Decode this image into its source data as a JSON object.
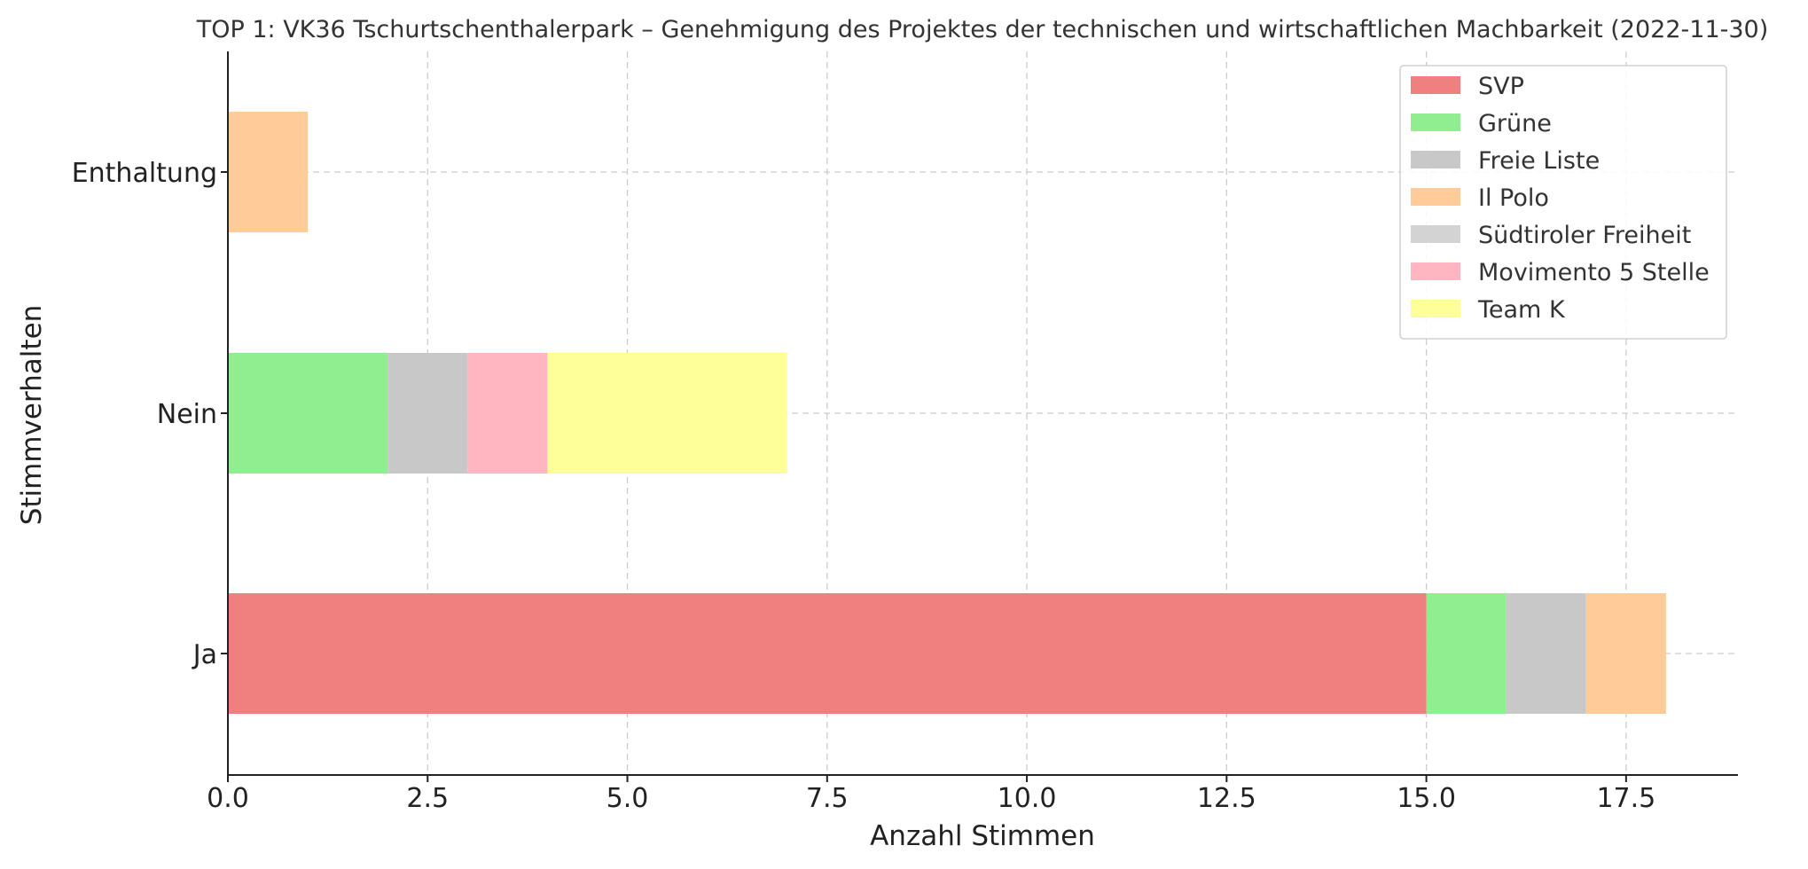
{
  "chart_data": {
    "type": "bar",
    "orientation": "horizontal",
    "stacked": true,
    "title": "TOP 1: VK36 Tschurtschenthalerpark – Genehmigung des Projektes der technischen und wirtschaftlichen Machbarkeit (2022-11-30)",
    "xlabel": "Anzahl Stimmen",
    "ylabel": "Stimmverhalten",
    "categories": [
      "Ja",
      "Nein",
      "Enthaltung"
    ],
    "xlim": [
      0,
      18.9
    ],
    "xticks": [
      "0.0",
      "2.5",
      "5.0",
      "7.5",
      "10.0",
      "12.5",
      "15.0",
      "17.5"
    ],
    "grid": true,
    "legend_position": "top-right",
    "series": [
      {
        "name": "SVP",
        "color": "#f08080",
        "values": [
          15,
          0,
          0
        ]
      },
      {
        "name": "Grüne",
        "color": "#90ee90",
        "values": [
          1,
          2,
          0
        ]
      },
      {
        "name": "Freie Liste",
        "color": "#c8c8c8",
        "values": [
          1,
          1,
          0
        ]
      },
      {
        "name": "Il Polo",
        "color": "#ffcc99",
        "values": [
          1,
          0,
          1
        ]
      },
      {
        "name": "Südtiroler Freiheit",
        "color": "#d3d3d3",
        "values": [
          0,
          0,
          0
        ]
      },
      {
        "name": "Movimento 5 Stelle",
        "color": "#ffb6c1",
        "values": [
          0,
          1,
          0
        ]
      },
      {
        "name": "Team K",
        "color": "#ffff99",
        "values": [
          0,
          3,
          0
        ]
      }
    ]
  }
}
